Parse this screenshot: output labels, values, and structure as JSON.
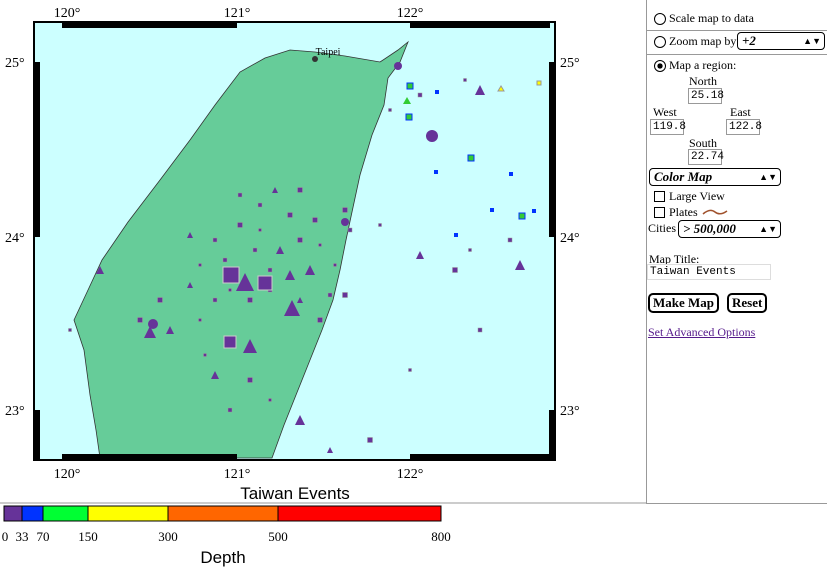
{
  "map": {
    "top_lon_ticks": [
      "120°",
      "121°",
      "122°"
    ],
    "bottom_lon_ticks": [
      "120°",
      "121°",
      "122°"
    ],
    "left_lat_ticks": [
      "25°",
      "24°",
      "23°"
    ],
    "right_lat_ticks": [
      "25°",
      "24°",
      "23°"
    ],
    "city": "Taipei",
    "title": "Taiwan Events"
  },
  "legend": {
    "labels": [
      "0",
      "33",
      "70",
      "150",
      "300",
      "500",
      "800"
    ],
    "title": "Depth"
  },
  "panel": {
    "scale_option": "Scale map to data",
    "zoom_option": "Zoom map by",
    "zoom_value": "+2",
    "region_option": "Map a region:",
    "north_label": "North",
    "north": 25.18,
    "west_label": "West",
    "west": 119.8,
    "east_label": "East",
    "east": 122.8,
    "south_label": "South",
    "south": 22.74,
    "color_map": "Color Map",
    "large_view": "Large View",
    "plates": "Plates",
    "cities_label": "Cities",
    "cities_value": "> 500,000",
    "map_title_label": "Map Title:",
    "map_title_value": "Taiwan Events",
    "make_map": "Make Map",
    "reset": "Reset",
    "advanced": "Set Advanced Options"
  }
}
